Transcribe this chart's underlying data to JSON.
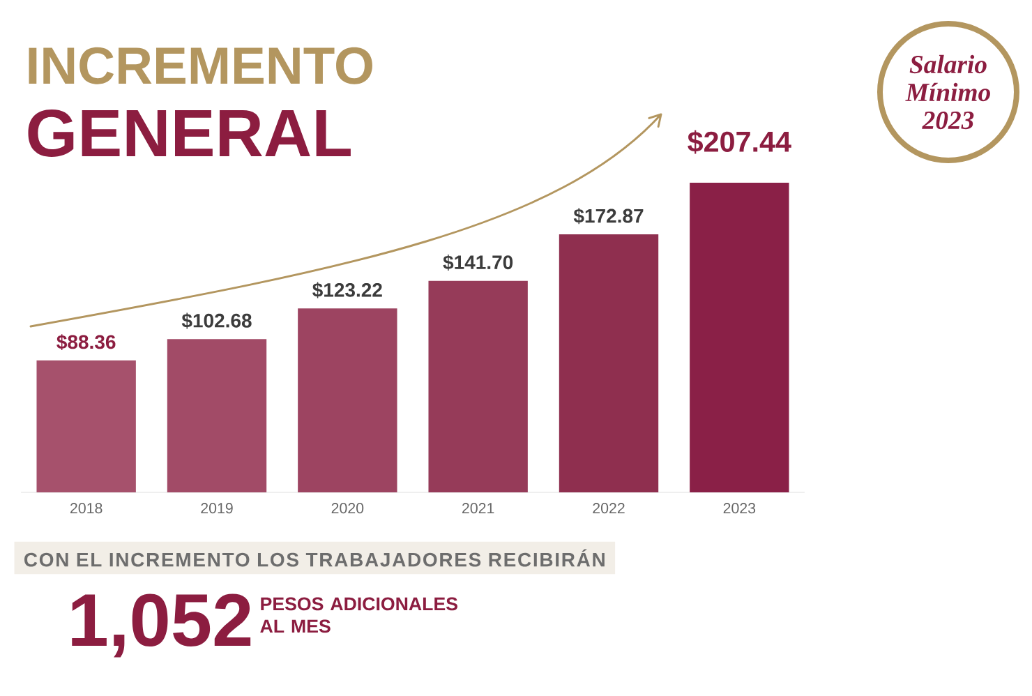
{
  "chart_data": {
    "type": "bar",
    "title": "INCREMENTO",
    "subtitle": "GENERAL",
    "categories": [
      "2018",
      "2019",
      "2020",
      "2021",
      "2022",
      "2023"
    ],
    "values": [
      88.36,
      102.68,
      123.22,
      141.7,
      172.87,
      207.44
    ],
    "colors": [
      "#a6516c",
      "#a24b67",
      "#9d4461",
      "#963b59",
      "#8f2f4f",
      "#8a2047"
    ],
    "value_labels": [
      "$88.36",
      "$102.68",
      "$123.22",
      "$141.70",
      "$172.87",
      "$207.44"
    ],
    "annotations": [
      "CON EL INCREMENTO LOS TRABAJADORES RECIBIRÁN",
      "1,052",
      "PESOS ADICIONALES AL MES",
      "Salario Mínimo 2023"
    ]
  }
}
